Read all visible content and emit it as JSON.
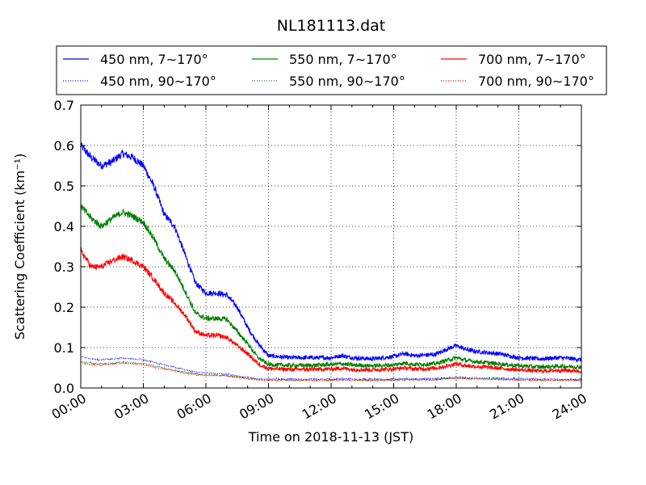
{
  "chart_data": {
    "type": "line",
    "title": "NL181113.dat",
    "xlabel": "Time on 2018-11-13 (JST)",
    "ylabel": "Scattering Coefficient (km⁻¹)",
    "x_range": [
      "00:00",
      "24:00"
    ],
    "x_ticks": [
      "00:00",
      "03:00",
      "06:00",
      "09:00",
      "12:00",
      "15:00",
      "18:00",
      "21:00",
      "24:00"
    ],
    "ylim": [
      0.0,
      0.7
    ],
    "y_ticks": [
      "0.0",
      "0.1",
      "0.2",
      "0.3",
      "0.4",
      "0.5",
      "0.6",
      "0.7"
    ],
    "grid": true,
    "legend_position": "top",
    "legend_columns": 3,
    "x": [
      "00:00",
      "00:30",
      "01:00",
      "01:30",
      "02:00",
      "02:30",
      "03:00",
      "03:30",
      "04:00",
      "04:30",
      "05:00",
      "05:30",
      "06:00",
      "06:30",
      "07:00",
      "07:30",
      "08:00",
      "08:30",
      "09:00",
      "10:00",
      "11:00",
      "12:00",
      "12:30",
      "13:00",
      "14:00",
      "15:00",
      "15:30",
      "16:00",
      "17:00",
      "17:30",
      "18:00",
      "18:30",
      "19:00",
      "20:00",
      "21:00",
      "22:00",
      "23:00",
      "24:00"
    ],
    "series": [
      {
        "name": "450 nm, 7∼170°",
        "color": "#0000ff",
        "style": "solid",
        "values": [
          0.6,
          0.57,
          0.55,
          0.56,
          0.58,
          0.57,
          0.55,
          0.5,
          0.43,
          0.4,
          0.33,
          0.26,
          0.235,
          0.235,
          0.23,
          0.2,
          0.15,
          0.11,
          0.08,
          0.075,
          0.075,
          0.075,
          0.08,
          0.075,
          0.072,
          0.078,
          0.085,
          0.08,
          0.083,
          0.095,
          0.105,
          0.095,
          0.09,
          0.085,
          0.075,
          0.072,
          0.075,
          0.07
        ]
      },
      {
        "name": "450 nm, 90∼170°",
        "color": "#0000ff",
        "style": "dotted",
        "values": [
          0.077,
          0.072,
          0.07,
          0.072,
          0.074,
          0.073,
          0.07,
          0.064,
          0.057,
          0.052,
          0.045,
          0.04,
          0.037,
          0.036,
          0.035,
          0.03,
          0.026,
          0.023,
          0.022,
          0.022,
          0.022,
          0.022,
          0.023,
          0.022,
          0.022,
          0.022,
          0.023,
          0.023,
          0.023,
          0.025,
          0.027,
          0.026,
          0.025,
          0.024,
          0.023,
          0.022,
          0.022,
          0.021
        ]
      },
      {
        "name": "550 nm, 7∼170°",
        "color": "#008000",
        "style": "solid",
        "values": [
          0.45,
          0.42,
          0.4,
          0.42,
          0.435,
          0.425,
          0.41,
          0.37,
          0.32,
          0.29,
          0.24,
          0.185,
          0.172,
          0.172,
          0.17,
          0.14,
          0.11,
          0.075,
          0.058,
          0.056,
          0.056,
          0.058,
          0.06,
          0.057,
          0.055,
          0.057,
          0.062,
          0.058,
          0.06,
          0.068,
          0.075,
          0.068,
          0.065,
          0.06,
          0.055,
          0.052,
          0.054,
          0.052
        ]
      },
      {
        "name": "550 nm, 90∼170°",
        "color": "#008000",
        "style": "dotted",
        "values": [
          0.066,
          0.062,
          0.06,
          0.062,
          0.064,
          0.063,
          0.06,
          0.055,
          0.049,
          0.044,
          0.039,
          0.035,
          0.033,
          0.032,
          0.031,
          0.027,
          0.024,
          0.021,
          0.02,
          0.02,
          0.02,
          0.02,
          0.021,
          0.02,
          0.02,
          0.02,
          0.021,
          0.021,
          0.021,
          0.023,
          0.025,
          0.024,
          0.023,
          0.022,
          0.021,
          0.02,
          0.02,
          0.019
        ]
      },
      {
        "name": "700 nm, 7∼170°",
        "color": "#ff0000",
        "style": "solid",
        "values": [
          0.34,
          0.3,
          0.3,
          0.315,
          0.325,
          0.315,
          0.3,
          0.27,
          0.235,
          0.21,
          0.18,
          0.14,
          0.13,
          0.13,
          0.125,
          0.105,
          0.085,
          0.06,
          0.048,
          0.046,
          0.046,
          0.047,
          0.049,
          0.046,
          0.045,
          0.047,
          0.05,
          0.047,
          0.049,
          0.054,
          0.06,
          0.055,
          0.053,
          0.049,
          0.045,
          0.042,
          0.044,
          0.042
        ]
      },
      {
        "name": "700 nm, 90∼170°",
        "color": "#ff0000",
        "style": "dotted",
        "values": [
          0.062,
          0.058,
          0.057,
          0.059,
          0.061,
          0.06,
          0.057,
          0.052,
          0.046,
          0.042,
          0.037,
          0.033,
          0.031,
          0.031,
          0.03,
          0.026,
          0.023,
          0.02,
          0.019,
          0.019,
          0.019,
          0.019,
          0.02,
          0.019,
          0.019,
          0.019,
          0.02,
          0.02,
          0.02,
          0.022,
          0.024,
          0.023,
          0.022,
          0.021,
          0.02,
          0.019,
          0.019,
          0.018
        ]
      }
    ]
  }
}
